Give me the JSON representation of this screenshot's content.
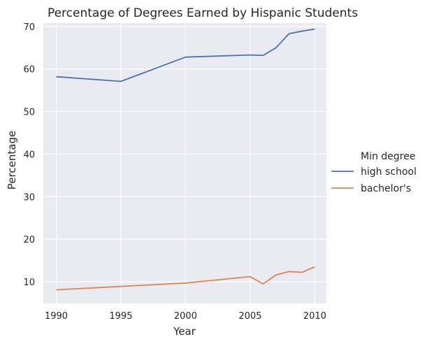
{
  "chart_data": {
    "type": "line",
    "title": "Percentage of Degrees Earned by Hispanic Students",
    "xlabel": "Year",
    "ylabel": "Percentage",
    "xlim": [
      1989.0,
      2010.9
    ],
    "ylim": [
      4.9,
      70.8
    ],
    "xticks": [
      1990,
      1995,
      2000,
      2005,
      2010
    ],
    "yticks": [
      10,
      20,
      30,
      40,
      50,
      60,
      70
    ],
    "grid": true,
    "background": "#eaeaf2",
    "legend": {
      "title": "Min degree",
      "placement": "right"
    },
    "series": [
      {
        "name": "high school",
        "color": "#4c72b0",
        "x": [
          1990,
          1995,
          2000,
          2005,
          2006,
          2007,
          2008,
          2009,
          2010
        ],
        "y": [
          58.2,
          57.1,
          62.8,
          63.3,
          63.2,
          65.0,
          68.3,
          68.9,
          69.4
        ]
      },
      {
        "name": "bachelor's",
        "color": "#dd8452",
        "x": [
          1990,
          1995,
          2000,
          2005,
          2006,
          2007,
          2008,
          2009,
          2010
        ],
        "y": [
          8.1,
          8.9,
          9.7,
          11.2,
          9.5,
          11.6,
          12.4,
          12.2,
          13.5
        ]
      }
    ]
  }
}
